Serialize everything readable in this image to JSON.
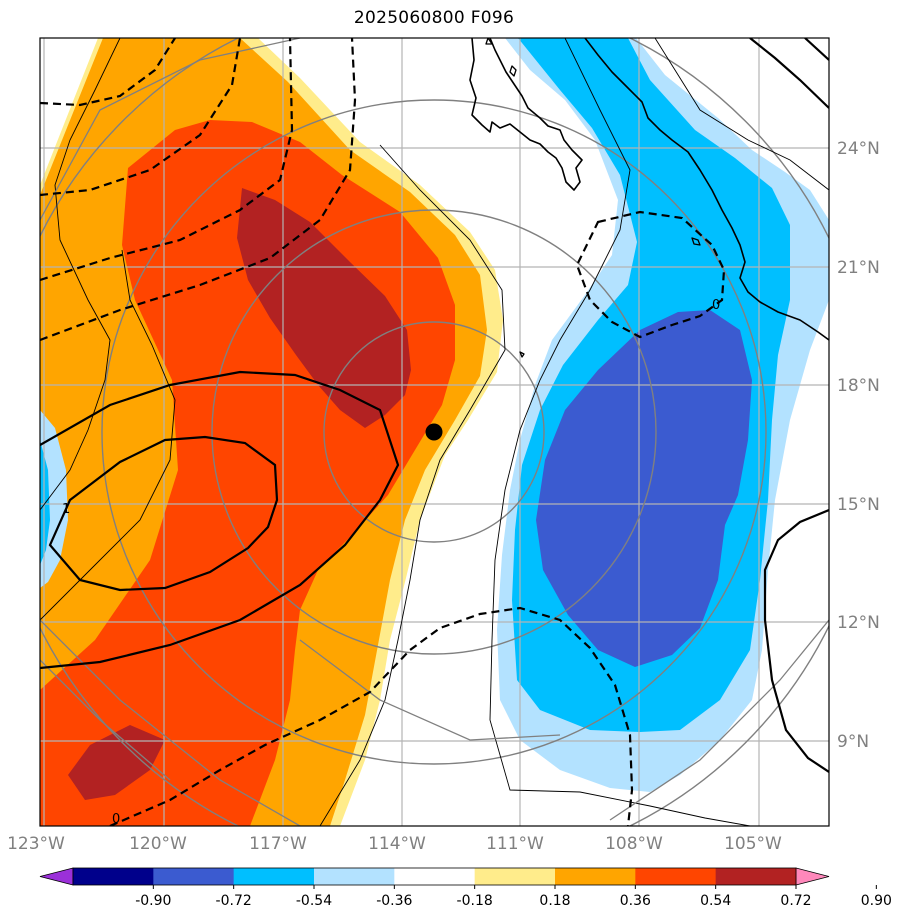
{
  "title": "2025060800 F096",
  "map": {
    "lon_labels": [
      "123°W",
      "120°W",
      "117°W",
      "114°W",
      "111°W",
      "108°W",
      "105°W"
    ],
    "lat_labels": [
      "24°N",
      "21°N",
      "18°N",
      "15°N",
      "12°N",
      "9°N"
    ],
    "lon_values": [
      -123,
      -120,
      -117,
      -114,
      -111,
      -108,
      -105
    ],
    "lat_values": [
      24,
      21,
      18,
      15,
      12,
      9
    ],
    "extent": {
      "lon_min": -123,
      "lon_max": -103,
      "lat_min": 7,
      "lat_max": 27
    },
    "marker": {
      "name": "storm-center",
      "lon": -113.2,
      "lat": 16.8
    },
    "contour_labels": [
      "0",
      "1",
      "0"
    ]
  },
  "colorbar": {
    "levels": [
      "-0.90",
      "-0.72",
      "-0.54",
      "-0.36",
      "-0.18",
      "0.18",
      "0.36",
      "0.54",
      "0.72",
      "0.90"
    ],
    "colors": [
      "#9b30d9",
      "#00008b",
      "#3b5bd0",
      "#00bfff",
      "#b3e2ff",
      "#ffffff",
      "#ffec8b",
      "#ffa500",
      "#ff4500",
      "#b22222",
      "#ff88bb"
    ]
  },
  "colors": {
    "grid": "#b4b4b4",
    "coast": "#000000",
    "range_rings": "#808080",
    "axis_text": "#808080"
  }
}
